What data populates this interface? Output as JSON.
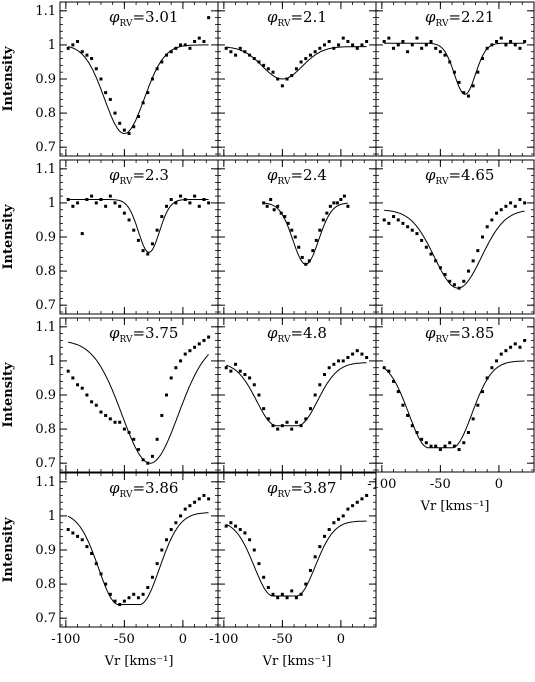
{
  "figure": {
    "ylabel": "Intensity",
    "xlabel": "Vr [kms⁻¹]",
    "y_ticks": [
      "1.1",
      "1",
      "0.9",
      "0.8",
      "0.7"
    ],
    "x_ticks": [
      "-100",
      "-50",
      "0"
    ]
  },
  "chart_data": [
    {
      "type": "scatter",
      "phase_symbol": "φ",
      "phase_sub": "RV",
      "phase_value": "3.01",
      "xlim": [
        -105,
        30
      ],
      "ylim": [
        0.68,
        1.12
      ],
      "x_ticks": [
        -100,
        -50,
        0
      ],
      "y_ticks": [
        0.7,
        0.8,
        0.9,
        1.0,
        1.1
      ],
      "show_y_ticklabels": true,
      "show_x_ticklabels": false,
      "series": [
        {
          "x": [
            -98,
            -94,
            -90,
            -86,
            -82,
            -78,
            -74,
            -70,
            -66,
            -62,
            -58,
            -54,
            -50,
            -46,
            -42,
            -38,
            -34,
            -30,
            -26,
            -22,
            -18,
            -14,
            -10,
            -6,
            -2,
            2,
            6,
            10,
            14,
            18,
            22
          ],
          "y": [
            0.99,
            1.0,
            1.01,
            0.98,
            0.97,
            0.96,
            0.93,
            0.9,
            0.86,
            0.84,
            0.8,
            0.77,
            0.75,
            0.74,
            0.76,
            0.79,
            0.83,
            0.86,
            0.9,
            0.93,
            0.95,
            0.97,
            0.98,
            0.99,
            1.0,
            1.0,
            0.99,
            1.01,
            1.02,
            1.01,
            1.08
          ]
        }
      ],
      "model": {
        "baseline": 1.0,
        "depth": 0.26,
        "center": -50,
        "width": 17
      }
    },
    {
      "type": "scatter",
      "phase_symbol": "φ",
      "phase_sub": "RV",
      "phase_value": "2.1",
      "xlim": [
        -105,
        30
      ],
      "ylim": [
        0.68,
        1.12
      ],
      "x_ticks": [
        -100,
        -50,
        0
      ],
      "y_ticks": [
        0.7,
        0.8,
        0.9,
        1.0,
        1.1
      ],
      "show_y_ticklabels": false,
      "show_x_ticklabels": false,
      "series": [
        {
          "x": [
            -98,
            -94,
            -90,
            -86,
            -82,
            -78,
            -74,
            -70,
            -66,
            -62,
            -58,
            -54,
            -50,
            -46,
            -42,
            -38,
            -34,
            -30,
            -26,
            -22,
            -18,
            -14,
            -10,
            -6,
            -2,
            2,
            6,
            10,
            14,
            18,
            22
          ],
          "y": [
            0.99,
            0.98,
            0.97,
            0.99,
            0.98,
            0.97,
            0.96,
            0.95,
            0.94,
            0.93,
            0.92,
            0.9,
            0.88,
            0.9,
            0.91,
            0.93,
            0.95,
            0.96,
            0.97,
            0.98,
            0.99,
            1.0,
            1.01,
            0.99,
            1.0,
            1.02,
            1.01,
            1.0,
            0.99,
            1.0,
            1.01
          ]
        }
      ],
      "model": {
        "baseline": 0.995,
        "depth": 0.095,
        "center": -50,
        "width": 17
      }
    },
    {
      "type": "scatter",
      "phase_symbol": "φ",
      "phase_sub": "RV",
      "phase_value": "2.21",
      "xlim": [
        -105,
        30
      ],
      "ylim": [
        0.68,
        1.12
      ],
      "x_ticks": [
        -100,
        -50,
        0
      ],
      "y_ticks": [
        0.7,
        0.8,
        0.9,
        1.0,
        1.1
      ],
      "show_y_ticklabels": false,
      "show_x_ticklabels": false,
      "series": [
        {
          "x": [
            -98,
            -94,
            -90,
            -86,
            -82,
            -78,
            -74,
            -70,
            -66,
            -62,
            -58,
            -54,
            -50,
            -46,
            -42,
            -38,
            -34,
            -30,
            -26,
            -22,
            -18,
            -14,
            -10,
            -6,
            -2,
            2,
            6,
            10,
            14,
            18,
            22
          ],
          "y": [
            1.01,
            1.02,
            0.99,
            1.0,
            1.01,
            0.98,
            1.0,
            1.02,
            0.99,
            1.0,
            1.01,
            0.99,
            0.98,
            0.97,
            0.95,
            0.92,
            0.89,
            0.86,
            0.85,
            0.88,
            0.92,
            0.96,
            0.99,
            1.0,
            1.01,
            1.02,
            1.0,
            1.01,
            1.0,
            0.99,
            1.01
          ]
        }
      ],
      "model": {
        "baseline": 1.005,
        "depth": 0.15,
        "center": -29,
        "width": 9
      }
    },
    {
      "type": "scatter",
      "phase_symbol": "φ",
      "phase_sub": "RV",
      "phase_value": "2.3",
      "xlim": [
        -105,
        30
      ],
      "ylim": [
        0.68,
        1.12
      ],
      "x_ticks": [
        -100,
        -50,
        0
      ],
      "y_ticks": [
        0.7,
        0.8,
        0.9,
        1.0,
        1.1
      ],
      "show_y_ticklabels": true,
      "show_x_ticklabels": false,
      "series": [
        {
          "x": [
            -98,
            -94,
            -90,
            -86,
            -82,
            -78,
            -74,
            -70,
            -66,
            -62,
            -58,
            -54,
            -50,
            -46,
            -42,
            -38,
            -34,
            -30,
            -26,
            -22,
            -18,
            -14,
            -10,
            -6,
            -2,
            2,
            6,
            10,
            14,
            18,
            22
          ],
          "y": [
            1.01,
            0.99,
            1.0,
            0.91,
            1.01,
            1.02,
            1.0,
            1.01,
            0.99,
            1.02,
            1.0,
            0.99,
            0.97,
            0.95,
            0.92,
            0.89,
            0.86,
            0.85,
            0.88,
            0.92,
            0.96,
            0.99,
            1.01,
            1.0,
            1.02,
            1.01,
            1.0,
            1.02,
            0.99,
            1.01,
            1.0
          ]
        }
      ],
      "model": {
        "baseline": 1.01,
        "depth": 0.155,
        "center": -29,
        "width": 9
      }
    },
    {
      "type": "scatter",
      "phase_symbol": "φ",
      "phase_sub": "RV",
      "phase_value": "2.4",
      "xlim": [
        -105,
        30
      ],
      "ylim": [
        0.68,
        1.12
      ],
      "x_ticks": [
        -100,
        -50,
        0
      ],
      "y_ticks": [
        0.7,
        0.8,
        0.9,
        1.0,
        1.1
      ],
      "show_y_ticklabels": false,
      "show_x_ticklabels": false,
      "series": [
        {
          "x": [
            -66,
            -63,
            -60,
            -57,
            -54,
            -51,
            -48,
            -45,
            -42,
            -39,
            -36,
            -33,
            -30,
            -27,
            -24,
            -21,
            -18,
            -15,
            -12,
            -9,
            -6,
            -3,
            0,
            3,
            6
          ],
          "y": [
            1.0,
            0.99,
            1.01,
            0.98,
            0.99,
            0.97,
            0.96,
            0.94,
            0.92,
            0.9,
            0.87,
            0.84,
            0.82,
            0.83,
            0.86,
            0.89,
            0.92,
            0.95,
            0.97,
            0.99,
            1.0,
            1.0,
            1.01,
            1.02,
            0.99
          ]
        }
      ],
      "model": {
        "baseline": 1.0,
        "depth": 0.18,
        "center": -30,
        "width": 11
      }
    },
    {
      "type": "scatter",
      "phase_symbol": "φ",
      "phase_sub": "RV",
      "phase_value": "4.65",
      "xlim": [
        -105,
        30
      ],
      "ylim": [
        0.68,
        1.12
      ],
      "x_ticks": [
        -100,
        -50,
        0
      ],
      "y_ticks": [
        0.7,
        0.8,
        0.9,
        1.0,
        1.1
      ],
      "show_y_ticklabels": false,
      "show_x_ticklabels": false,
      "series": [
        {
          "x": [
            -98,
            -94,
            -90,
            -86,
            -82,
            -78,
            -74,
            -70,
            -66,
            -62,
            -58,
            -54,
            -50,
            -46,
            -42,
            -38,
            -34,
            -30,
            -26,
            -22,
            -18,
            -14,
            -10,
            -6,
            -2,
            2,
            6,
            10,
            14,
            18,
            22
          ],
          "y": [
            0.95,
            0.94,
            0.96,
            0.95,
            0.94,
            0.93,
            0.92,
            0.91,
            0.89,
            0.87,
            0.85,
            0.83,
            0.81,
            0.79,
            0.77,
            0.76,
            0.75,
            0.77,
            0.8,
            0.83,
            0.86,
            0.9,
            0.93,
            0.95,
            0.97,
            0.98,
            0.99,
            1.0,
            0.99,
            1.01,
            1.0
          ]
        }
      ],
      "model": {
        "baseline": 0.98,
        "depth": 0.23,
        "center": -35,
        "width": 20
      }
    },
    {
      "type": "scatter",
      "phase_symbol": "φ",
      "phase_sub": "RV",
      "phase_value": "3.75",
      "xlim": [
        -105,
        30
      ],
      "ylim": [
        0.68,
        1.12
      ],
      "x_ticks": [
        -100,
        -50,
        0
      ],
      "y_ticks": [
        0.7,
        0.8,
        0.9,
        1.0,
        1.1
      ],
      "show_y_ticklabels": true,
      "show_x_ticklabels": false,
      "series": [
        {
          "x": [
            -98,
            -94,
            -90,
            -86,
            -82,
            -78,
            -74,
            -70,
            -66,
            -62,
            -58,
            -54,
            -50,
            -46,
            -42,
            -38,
            -34,
            -30,
            -26,
            -22,
            -18,
            -14,
            -10,
            -6,
            -2,
            2,
            6,
            10,
            14,
            18,
            22
          ],
          "y": [
            0.97,
            0.95,
            0.93,
            0.92,
            0.9,
            0.88,
            0.87,
            0.85,
            0.84,
            0.83,
            0.82,
            0.82,
            0.8,
            0.79,
            0.77,
            0.74,
            0.71,
            0.7,
            0.72,
            0.77,
            0.84,
            0.9,
            0.95,
            0.98,
            1.0,
            1.02,
            1.03,
            1.04,
            1.05,
            1.06,
            1.07
          ]
        }
      ],
      "model": {
        "baseline": 1.06,
        "depth": 0.36,
        "center": -28,
        "width": 24
      }
    },
    {
      "type": "scatter",
      "phase_symbol": "φ",
      "phase_sub": "RV",
      "phase_value": "4.8",
      "xlim": [
        -105,
        30
      ],
      "ylim": [
        0.68,
        1.12
      ],
      "x_ticks": [
        -100,
        -50,
        0
      ],
      "y_ticks": [
        0.7,
        0.8,
        0.9,
        1.0,
        1.1
      ],
      "show_y_ticklabels": false,
      "show_x_ticklabels": false,
      "series": [
        {
          "x": [
            -98,
            -94,
            -90,
            -86,
            -82,
            -78,
            -74,
            -70,
            -66,
            -62,
            -58,
            -54,
            -50,
            -46,
            -42,
            -38,
            -34,
            -30,
            -26,
            -22,
            -18,
            -14,
            -10,
            -6,
            -2,
            2,
            6,
            10,
            14,
            18,
            22
          ],
          "y": [
            0.98,
            0.97,
            0.99,
            0.97,
            0.96,
            0.95,
            0.93,
            0.9,
            0.86,
            0.83,
            0.81,
            0.8,
            0.81,
            0.82,
            0.8,
            0.82,
            0.81,
            0.83,
            0.86,
            0.9,
            0.93,
            0.96,
            0.98,
            0.99,
            1.0,
            1.0,
            1.01,
            1.02,
            1.03,
            1.02,
            1.01
          ]
        }
      ],
      "model": {
        "baseline": 0.995,
        "depth": 0.185,
        "center": -46,
        "width": 17,
        "flat": 18
      }
    },
    {
      "type": "scatter",
      "phase_symbol": "φ",
      "phase_sub": "RV",
      "phase_value": "3.85",
      "xlim": [
        -105,
        30
      ],
      "ylim": [
        0.68,
        1.12
      ],
      "x_ticks": [
        -100,
        -50,
        0
      ],
      "y_ticks": [
        0.7,
        0.8,
        0.9,
        1.0,
        1.1
      ],
      "show_y_ticklabels": false,
      "show_x_ticklabels": true,
      "series": [
        {
          "x": [
            -98,
            -94,
            -90,
            -86,
            -82,
            -78,
            -74,
            -70,
            -66,
            -62,
            -58,
            -54,
            -50,
            -46,
            -42,
            -38,
            -34,
            -30,
            -26,
            -22,
            -18,
            -14,
            -10,
            -6,
            -2,
            2,
            6,
            10,
            14,
            18,
            22
          ],
          "y": [
            0.98,
            0.97,
            0.94,
            0.91,
            0.87,
            0.84,
            0.81,
            0.79,
            0.77,
            0.76,
            0.75,
            0.75,
            0.74,
            0.75,
            0.76,
            0.75,
            0.74,
            0.76,
            0.79,
            0.83,
            0.87,
            0.91,
            0.95,
            0.98,
            1.0,
            1.02,
            1.03,
            1.04,
            1.05,
            1.04,
            1.06
          ]
        }
      ],
      "model": {
        "baseline": 1.0,
        "depth": 0.255,
        "center": -50,
        "width": 17,
        "flat": 20
      }
    },
    {
      "type": "scatter",
      "phase_symbol": "φ",
      "phase_sub": "RV",
      "phase_value": "3.86",
      "xlim": [
        -105,
        30
      ],
      "ylim": [
        0.68,
        1.12
      ],
      "x_ticks": [
        -100,
        -50,
        0
      ],
      "y_ticks": [
        0.7,
        0.8,
        0.9,
        1.0,
        1.1
      ],
      "show_y_ticklabels": true,
      "show_x_ticklabels": true,
      "series": [
        {
          "x": [
            -98,
            -94,
            -90,
            -86,
            -82,
            -78,
            -74,
            -70,
            -66,
            -62,
            -58,
            -54,
            -50,
            -46,
            -42,
            -38,
            -34,
            -30,
            -26,
            -22,
            -18,
            -14,
            -10,
            -6,
            -2,
            2,
            6,
            10,
            14,
            18,
            22
          ],
          "y": [
            0.96,
            0.95,
            0.94,
            0.93,
            0.91,
            0.89,
            0.86,
            0.83,
            0.8,
            0.77,
            0.75,
            0.74,
            0.75,
            0.76,
            0.77,
            0.76,
            0.77,
            0.79,
            0.82,
            0.86,
            0.9,
            0.93,
            0.96,
            0.98,
            1.0,
            1.02,
            1.03,
            1.04,
            1.05,
            1.06,
            1.05
          ]
        }
      ],
      "model": {
        "baseline": 1.01,
        "depth": 0.27,
        "center": -46,
        "width": 17,
        "flat": 18
      }
    },
    {
      "type": "scatter",
      "phase_symbol": "φ",
      "phase_sub": "RV",
      "phase_value": "3.87",
      "xlim": [
        -105,
        30
      ],
      "ylim": [
        0.68,
        1.12
      ],
      "x_ticks": [
        -100,
        -50,
        0
      ],
      "y_ticks": [
        0.7,
        0.8,
        0.9,
        1.0,
        1.1
      ],
      "show_y_ticklabels": false,
      "show_x_ticklabels": true,
      "series": [
        {
          "x": [
            -98,
            -94,
            -90,
            -86,
            -82,
            -78,
            -74,
            -70,
            -66,
            -62,
            -58,
            -54,
            -50,
            -46,
            -42,
            -38,
            -34,
            -30,
            -26,
            -22,
            -18,
            -14,
            -10,
            -6,
            -2,
            2,
            6,
            10,
            14,
            18,
            22
          ],
          "y": [
            0.97,
            0.98,
            0.97,
            0.96,
            0.95,
            0.93,
            0.9,
            0.86,
            0.82,
            0.79,
            0.77,
            0.76,
            0.77,
            0.76,
            0.78,
            0.76,
            0.77,
            0.8,
            0.84,
            0.88,
            0.91,
            0.94,
            0.96,
            0.98,
            0.99,
            1.0,
            1.02,
            1.03,
            1.04,
            1.05,
            1.06
          ]
        }
      ],
      "model": {
        "baseline": 0.985,
        "depth": 0.22,
        "center": -48,
        "width": 16,
        "flat": 20
      }
    }
  ]
}
